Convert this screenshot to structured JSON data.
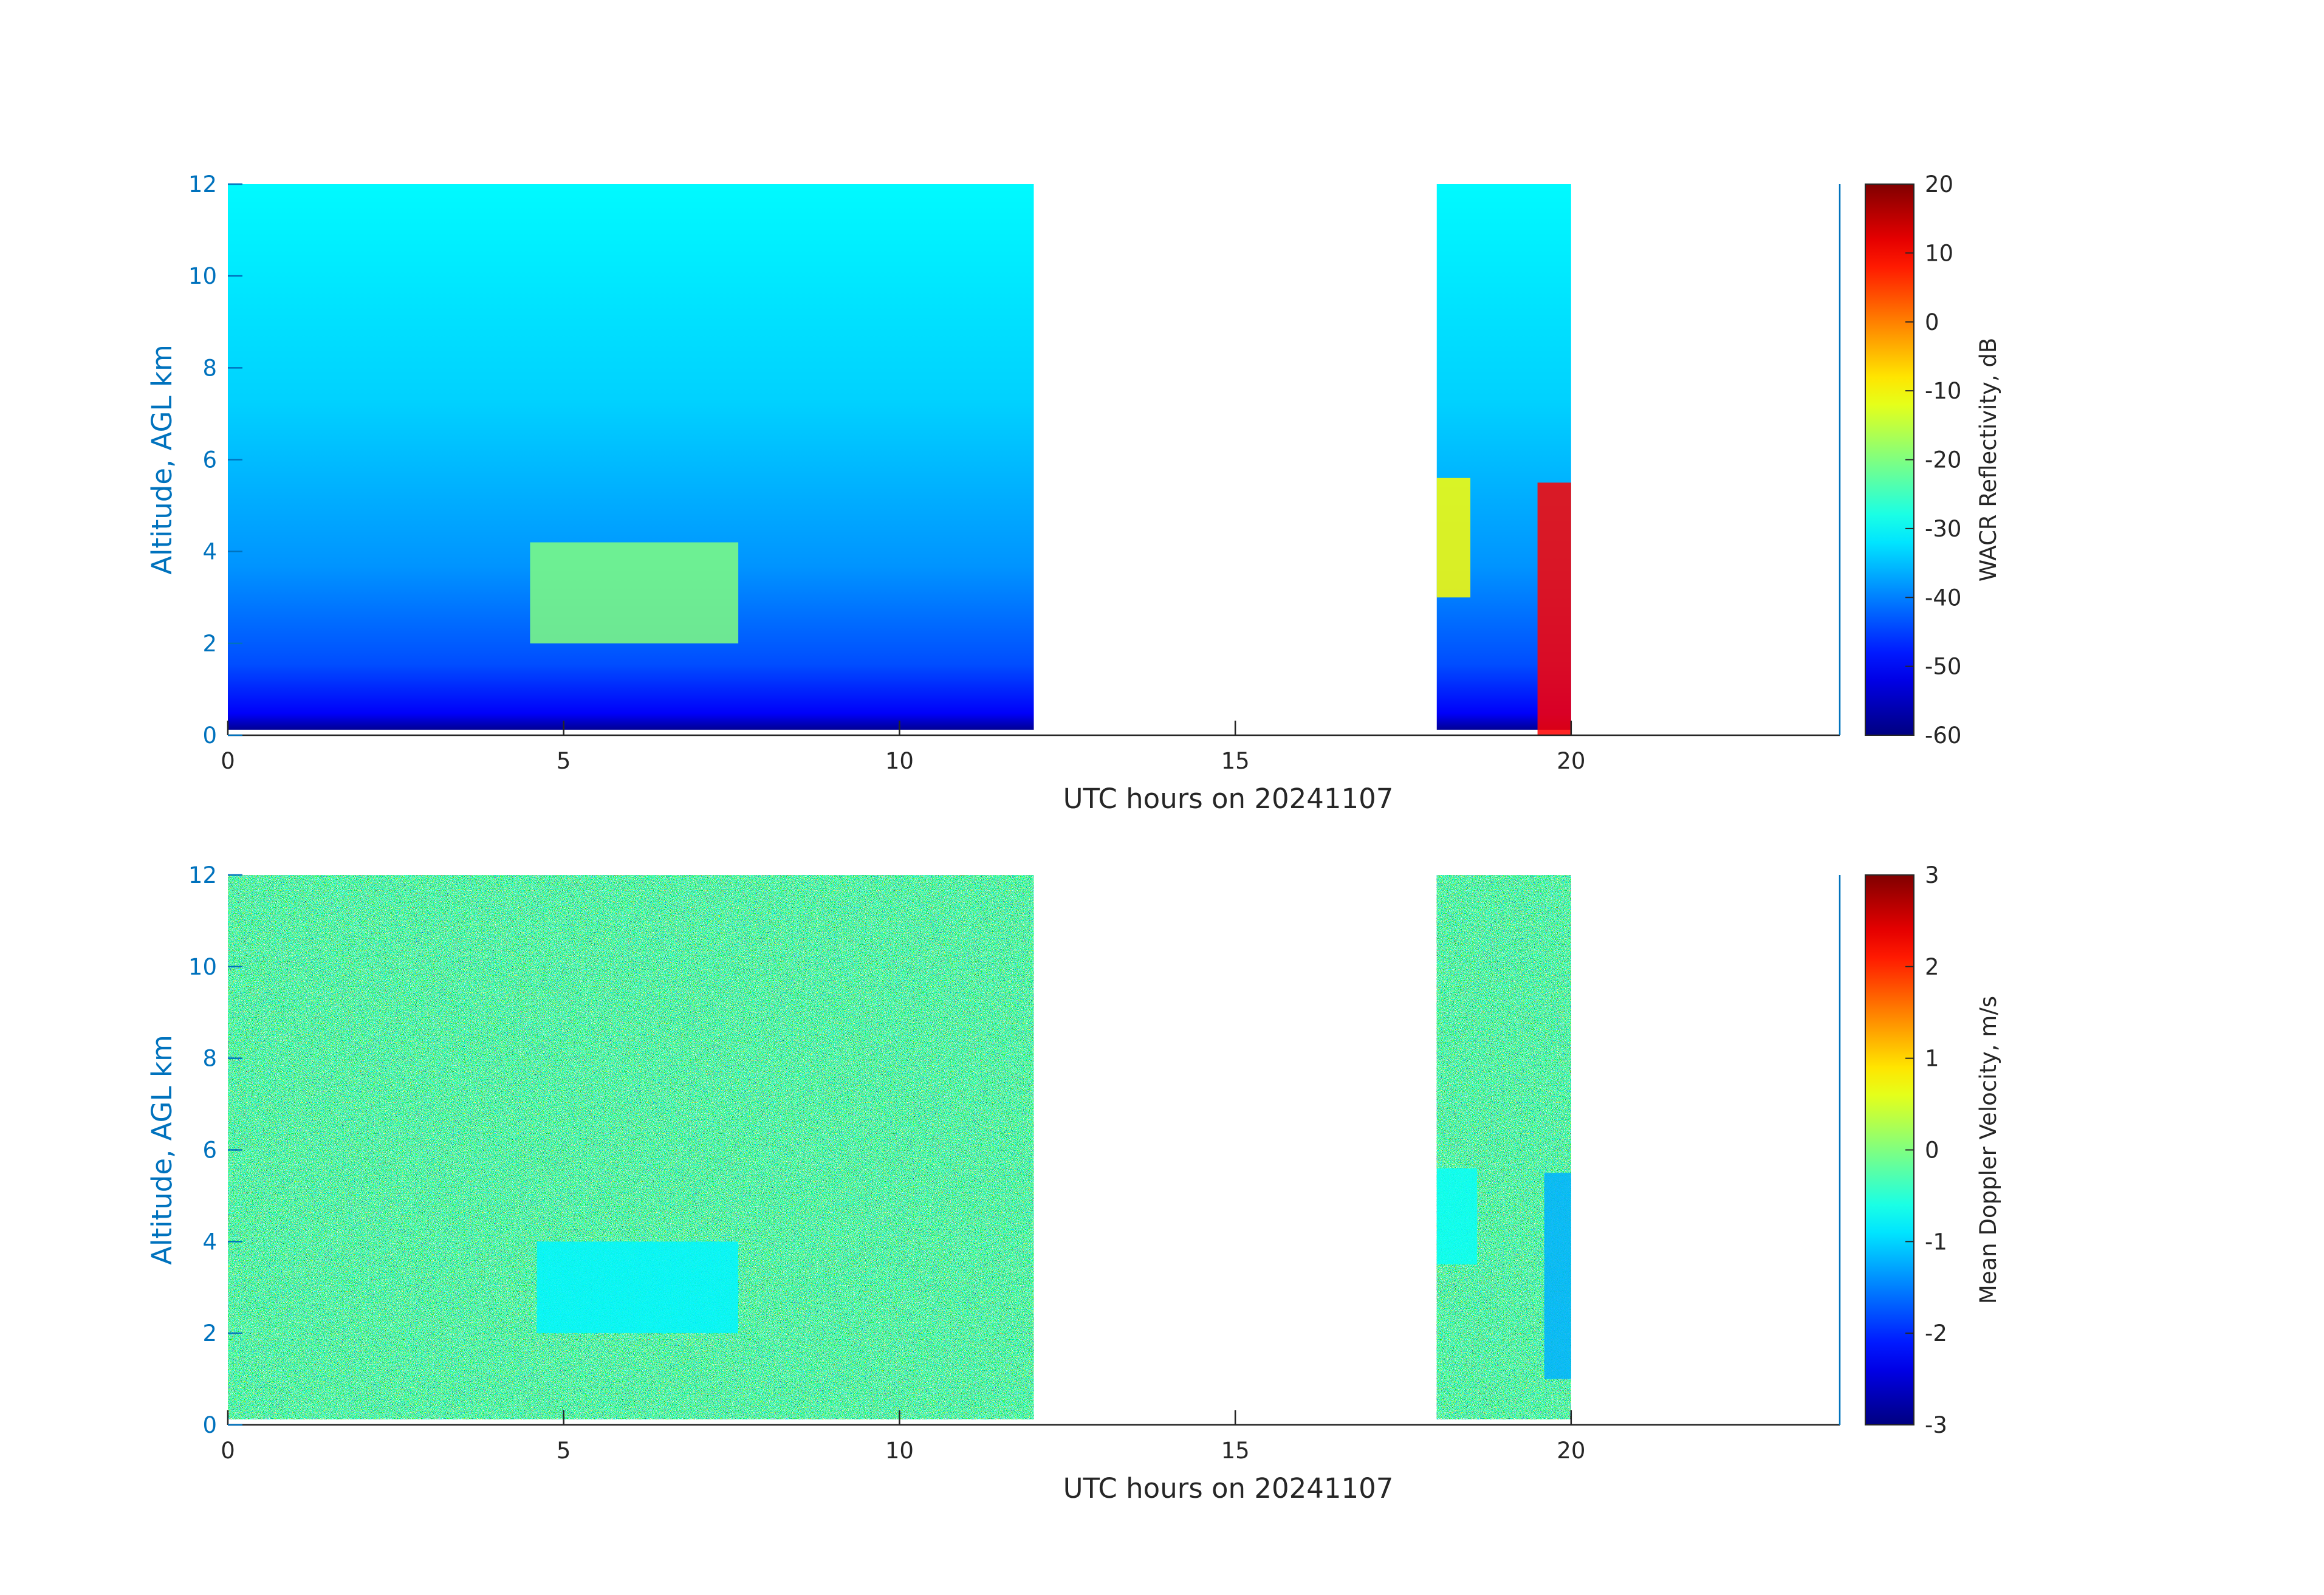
{
  "chart_data": [
    {
      "type": "heatmap",
      "title": "",
      "xlabel": "UTC hours on 20241107",
      "ylabel": "Altitude, AGL km",
      "xlim": [
        0,
        24
      ],
      "ylim": [
        0,
        12
      ],
      "xticks": [
        0,
        5,
        10,
        15,
        20
      ],
      "yticks": [
        0,
        2,
        4,
        6,
        8,
        10,
        12
      ],
      "data_coverage_hours": [
        [
          0,
          12
        ],
        [
          18,
          20
        ]
      ],
      "colorbar": {
        "label": "WACR Reflectivity, dB",
        "range": [
          -60,
          20
        ],
        "ticks": [
          20,
          10,
          0,
          -10,
          -20,
          -30,
          -40,
          -50,
          -60
        ],
        "colormap": "jet"
      },
      "features": [
        {
          "x": [
            4.5,
            7.6
          ],
          "y": [
            2.0,
            4.2
          ],
          "value_db": -20
        },
        {
          "x": [
            18.0,
            18.5
          ],
          "y": [
            3.0,
            5.6
          ],
          "value_db": -10
        },
        {
          "x": [
            19.5,
            20.0
          ],
          "y": [
            0.0,
            5.5
          ],
          "value_db": 10
        }
      ],
      "highlight_color": "#ffffff"
    },
    {
      "type": "heatmap",
      "title": "",
      "xlabel": "UTC hours on 20241107",
      "ylabel": "Altitude, AGL km",
      "xlim": [
        0,
        24
      ],
      "ylim": [
        0,
        12
      ],
      "xticks": [
        0,
        5,
        10,
        15,
        20
      ],
      "yticks": [
        0,
        2,
        4,
        6,
        8,
        10,
        12
      ],
      "data_coverage_hours": [
        [
          0,
          12
        ],
        [
          18,
          20
        ]
      ],
      "colorbar": {
        "label": "Mean Doppler Velocity, m/s",
        "range": [
          -3,
          3
        ],
        "ticks": [
          3,
          2,
          1,
          0,
          -1,
          -2,
          -3
        ],
        "colormap": "jet"
      },
      "features": [
        {
          "x": [
            4.6,
            7.6
          ],
          "y": [
            2.0,
            4.0
          ],
          "value_ms": -0.8
        },
        {
          "x": [
            18.0,
            18.6
          ],
          "y": [
            3.5,
            5.6
          ],
          "value_ms": -0.7
        },
        {
          "x": [
            19.6,
            20.0
          ],
          "y": [
            1.0,
            5.5
          ],
          "value_ms": -1.2
        }
      ]
    }
  ]
}
